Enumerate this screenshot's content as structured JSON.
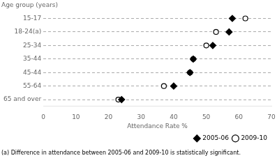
{
  "chart_data": {
    "type": "dot",
    "orientation": "horizontal",
    "ylabel": "Age group (years)",
    "xlabel": "Attendance Rate %",
    "annotations": [
      "(a) Difference in attendance between 2005-06 and 2009-10 is statistically significant."
    ],
    "categories": [
      "15-17",
      "18-24(a)",
      "25-34",
      "35-44",
      "45-44",
      "55-64",
      "65 and over"
    ],
    "series": [
      {
        "name": "2005-06",
        "color": "#000000",
        "marker": "diamond",
        "values": [
          58,
          57,
          52,
          46,
          45,
          40,
          24
        ]
      },
      {
        "name": "2009-10",
        "color": "#000000",
        "marker": "open_circle",
        "values": [
          62,
          53,
          50,
          46,
          45,
          37,
          23
        ]
      }
    ],
    "xlim": [
      0,
      70
    ],
    "xticks": [
      0,
      10,
      20,
      30,
      40,
      50,
      60,
      70
    ],
    "grid": true,
    "legend": "lower right"
  }
}
